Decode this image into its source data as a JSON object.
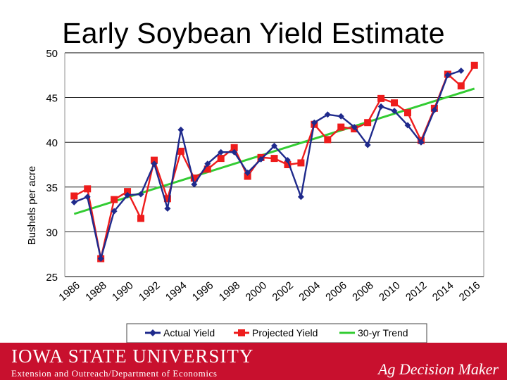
{
  "title": "Early Soybean Yield Estimate",
  "footer": {
    "logo": "IOWA STATE UNIVERSITY",
    "subtitle": "Extension and Outreach/Department of Economics",
    "brand": "Ag Decision Maker"
  },
  "colors": {
    "actual": "#1f2a8c",
    "projected": "#ee1c1c",
    "trend": "#33cc33",
    "footer": "#c8102e"
  },
  "chart_data": {
    "type": "line",
    "title": "Early Soybean Yield Estimate",
    "xlabel": "",
    "ylabel": "Bushels per acre",
    "ylim": [
      25,
      50
    ],
    "yticks": [
      25,
      30,
      35,
      40,
      45,
      50
    ],
    "xticks": [
      "1986",
      "1988",
      "1990",
      "1992",
      "1994",
      "1996",
      "1998",
      "2000",
      "2002",
      "2004",
      "2006",
      "2008",
      "2010",
      "2012",
      "2014",
      "2016"
    ],
    "grid": true,
    "legend_position": "bottom",
    "x": [
      1986,
      1987,
      1988,
      1989,
      1990,
      1991,
      1992,
      1993,
      1994,
      1995,
      1996,
      1997,
      1998,
      1999,
      2000,
      2001,
      2002,
      2003,
      2004,
      2005,
      2006,
      2007,
      2008,
      2009,
      2010,
      2011,
      2012,
      2013,
      2014,
      2015,
      2016
    ],
    "series": [
      {
        "name": "Actual Yield",
        "marker": "diamond",
        "x": [
          1986,
          1987,
          1988,
          1989,
          1990,
          1991,
          1992,
          1993,
          1994,
          1995,
          1996,
          1997,
          1998,
          1999,
          2000,
          2001,
          2002,
          2003,
          2004,
          2005,
          2006,
          2007,
          2008,
          2009,
          2010,
          2011,
          2012,
          2013,
          2014,
          2015
        ],
        "values": [
          33.3,
          33.9,
          27.0,
          32.3,
          34.1,
          34.2,
          37.6,
          32.6,
          41.4,
          35.3,
          37.6,
          38.9,
          38.9,
          36.6,
          38.1,
          39.6,
          38.0,
          33.9,
          42.2,
          43.1,
          42.9,
          41.7,
          39.7,
          44.0,
          43.5,
          41.9,
          40.0,
          43.6,
          47.5,
          48.0
        ]
      },
      {
        "name": "Projected Yield",
        "marker": "square",
        "x": [
          1986,
          1987,
          1988,
          1989,
          1990,
          1991,
          1992,
          1993,
          1994,
          1995,
          1996,
          1997,
          1998,
          1999,
          2000,
          2001,
          2002,
          2003,
          2004,
          2005,
          2006,
          2007,
          2008,
          2009,
          2010,
          2011,
          2012,
          2013,
          2014,
          2015,
          2016
        ],
        "values": [
          34.0,
          34.8,
          27.0,
          33.6,
          34.5,
          31.5,
          38.0,
          33.7,
          39.0,
          36.0,
          37.0,
          38.2,
          39.4,
          36.2,
          38.3,
          38.2,
          37.5,
          37.7,
          42.0,
          40.3,
          41.7,
          41.5,
          42.2,
          44.9,
          44.4,
          43.3,
          40.2,
          43.8,
          47.6,
          46.3,
          48.6
        ]
      },
      {
        "name": "30-yr Trend",
        "marker": "none",
        "x": [
          1986,
          2016
        ],
        "values": [
          32.0,
          46.0
        ]
      }
    ]
  }
}
